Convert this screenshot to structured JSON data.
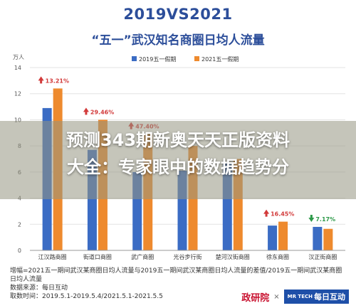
{
  "header": {
    "title": "2019VS2021",
    "subtitle": "“五一”武汉知名商圈日均人流量"
  },
  "chart_data": {
    "type": "bar",
    "ylabel": "万人",
    "ylim": [
      0,
      14
    ],
    "yticks": [
      0,
      2,
      4,
      6,
      8,
      10,
      12,
      14
    ],
    "categories": [
      "江汉路商圈",
      "街道口商圈",
      "武广商圈",
      "光谷步行街",
      "楚河汉街商圈",
      "徐东商圈",
      "汉正街商圈"
    ],
    "series": [
      {
        "name": "2019五一假期",
        "color": "#3b6cc4",
        "values": [
          10.9,
          7.7,
          6.0,
          6.1,
          6.7,
          1.9,
          1.8
        ]
      },
      {
        "name": "2021五一假期",
        "color": "#ee8a2e",
        "values": [
          12.4,
          10.0,
          8.9,
          8.0,
          7.0,
          2.2,
          1.65
        ]
      }
    ],
    "growth": [
      {
        "text": "13.21%",
        "direction": "up",
        "color": "#d23a3a"
      },
      {
        "text": "29.46%",
        "direction": "up",
        "color": "#d23a3a"
      },
      {
        "text": "47.40%",
        "direction": "up",
        "color": "#d23a3a"
      },
      {
        "text": "",
        "direction": "up",
        "color": "#d23a3a"
      },
      {
        "text": "",
        "direction": "up",
        "color": "#d23a3a"
      },
      {
        "text": "16.45%",
        "direction": "up",
        "color": "#d23a3a"
      },
      {
        "text": "7.17%",
        "direction": "down",
        "color": "#2e9a4a"
      }
    ]
  },
  "footer": {
    "note": "增幅=2021五一期间武汉某商圈日均人流量与2019五一期间武汉某商圈日均人流量的差值/2019五一期间武汉某商圈日均人流量",
    "source": "数据来源：每日互动",
    "period": "取数时间：2019.5.1-2019.5.4/2021.5.1-2021.5.5"
  },
  "logos": {
    "zhengyan": "政研院",
    "times": "×",
    "meiri": "每日互动",
    "meiri_mark": "MR TECH"
  },
  "banner": {
    "line1": "预测343期新奥天天正版资料",
    "line2": "大全：专家眼中的数据趋势分"
  }
}
